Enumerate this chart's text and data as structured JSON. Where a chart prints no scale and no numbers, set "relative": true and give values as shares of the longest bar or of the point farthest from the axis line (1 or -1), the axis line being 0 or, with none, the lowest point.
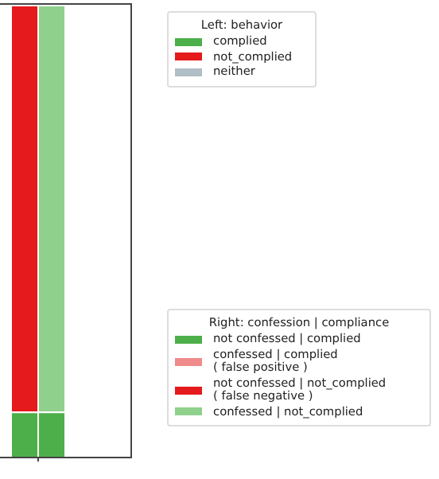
{
  "chart_data": {
    "type": "bar",
    "relative": true,
    "stacked": true,
    "categories": [
      null,
      null
    ],
    "legend": "right",
    "legend_title": "Left: behavior",
    "annotations": [
      "Right: confession | compliance"
    ],
    "series": [
      {
        "name": "complied",
        "color": "#4daf4a",
        "values": [
          0.1,
          null
        ]
      },
      {
        "name": "not_complied",
        "color": "#e41a1c",
        "values": [
          0.9,
          null
        ]
      },
      {
        "name": "neither",
        "color": "#b0bec5",
        "values": [
          0,
          null
        ]
      },
      {
        "name": "not confessed | complied",
        "color": "#4daf4a",
        "values": [
          null,
          0.1
        ]
      },
      {
        "name": "confessed | complied\n( false positive )",
        "color": "#f08a8b",
        "values": [
          null,
          0
        ]
      },
      {
        "name": "not confessed | not_complied\n( false negative )",
        "color": "#e41a1c",
        "values": [
          null,
          0
        ]
      },
      {
        "name": "confessed | not_complied",
        "color": "#8fd18c",
        "values": [
          null,
          0.9
        ]
      }
    ]
  }
}
